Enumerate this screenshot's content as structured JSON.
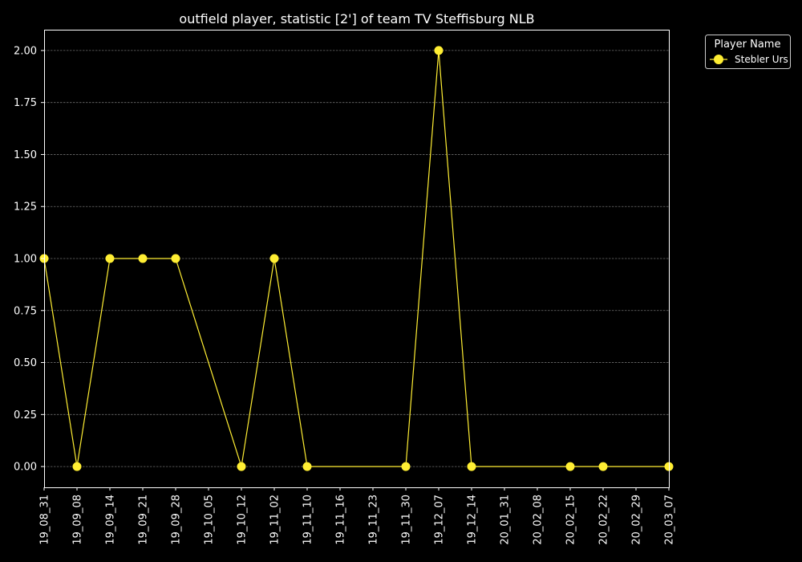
{
  "chart_data": {
    "type": "line",
    "title": "outfield player, statistic [2'] of team TV Steffisburg NLB",
    "xlabel": "",
    "ylabel": "",
    "categories": [
      "19_08_31",
      "19_09_08",
      "19_09_14",
      "19_09_21",
      "19_09_28",
      "19_10_05",
      "19_10_12",
      "19_11_02",
      "19_11_10",
      "19_11_16",
      "19_11_23",
      "19_11_30",
      "19_12_07",
      "19_12_14",
      "20_01_31",
      "20_02_08",
      "20_02_15",
      "20_02_22",
      "20_02_29",
      "20_03_07"
    ],
    "yticks": [
      "0.00",
      "0.25",
      "0.50",
      "0.75",
      "1.00",
      "1.25",
      "1.50",
      "1.75",
      "2.00"
    ],
    "ylim": [
      -0.1,
      2.1
    ],
    "grid": true,
    "legend": {
      "title": "Player Name",
      "placement": "outside-top-right"
    },
    "series": [
      {
        "name": "Stebler Urs",
        "color": "#ffee33",
        "points": [
          {
            "x": "19_08_31",
            "y": 1
          },
          {
            "x": "19_09_08",
            "y": 0
          },
          {
            "x": "19_09_14",
            "y": 1
          },
          {
            "x": "19_09_21",
            "y": 1
          },
          {
            "x": "19_09_28",
            "y": 1
          },
          {
            "x": "19_10_12",
            "y": 0
          },
          {
            "x": "19_11_02",
            "y": 1
          },
          {
            "x": "19_11_10",
            "y": 0
          },
          {
            "x": "19_11_30",
            "y": 0
          },
          {
            "x": "19_12_07",
            "y": 2
          },
          {
            "x": "19_12_14",
            "y": 0
          },
          {
            "x": "20_02_15",
            "y": 0
          },
          {
            "x": "20_02_22",
            "y": 0
          },
          {
            "x": "20_03_07",
            "y": 0
          }
        ]
      }
    ]
  }
}
